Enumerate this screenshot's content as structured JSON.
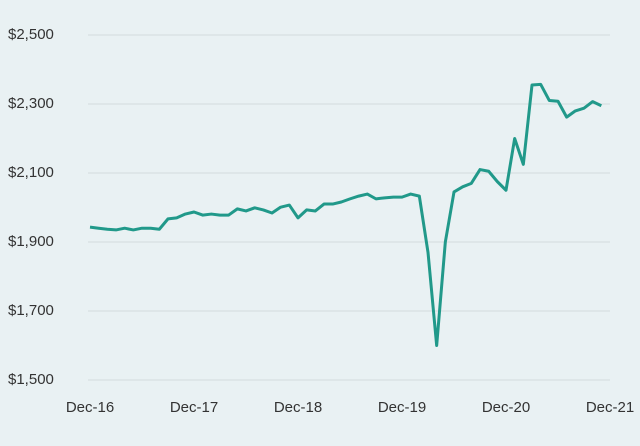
{
  "chart_data": {
    "type": "line",
    "x": [
      "2016-12",
      "2017-01",
      "2017-02",
      "2017-03",
      "2017-04",
      "2017-05",
      "2017-06",
      "2017-07",
      "2017-08",
      "2017-09",
      "2017-10",
      "2017-11",
      "2017-12",
      "2018-01",
      "2018-02",
      "2018-03",
      "2018-04",
      "2018-05",
      "2018-06",
      "2018-07",
      "2018-08",
      "2018-09",
      "2018-10",
      "2018-11",
      "2018-12",
      "2019-01",
      "2019-02",
      "2019-03",
      "2019-04",
      "2019-05",
      "2019-06",
      "2019-07",
      "2019-08",
      "2019-09",
      "2019-10",
      "2019-11",
      "2019-12",
      "2020-01",
      "2020-02",
      "2020-03",
      "2020-04",
      "2020-05",
      "2020-06",
      "2020-07",
      "2020-08",
      "2020-09",
      "2020-10",
      "2020-11",
      "2020-12",
      "2021-01",
      "2021-02",
      "2021-03",
      "2021-04",
      "2021-05",
      "2021-06",
      "2021-07",
      "2021-08",
      "2021-09",
      "2021-10",
      "2021-11"
    ],
    "series": [
      {
        "name": "Value",
        "color": "#21998a",
        "values": [
          1943,
          1940,
          1937,
          1935,
          1940,
          1935,
          1940,
          1940,
          1937,
          1967,
          1970,
          1981,
          1987,
          1978,
          1981,
          1978,
          1978,
          1996,
          1990,
          1999,
          1993,
          1984,
          2001,
          2007,
          1970,
          1993,
          1990,
          2010,
          2010,
          2016,
          2025,
          2033,
          2039,
          2025,
          2028,
          2030,
          2030,
          2039,
          2033,
          1870,
          1600,
          1900,
          2045,
          2060,
          2070,
          2110,
          2105,
          2075,
          2050,
          2200,
          2125,
          2355,
          2357,
          2310,
          2308,
          2262,
          2280,
          2288,
          2307,
          2295
        ]
      }
    ],
    "xlim": [
      "2016-12",
      "2021-12"
    ],
    "xticks": [
      {
        "value": "2016-12",
        "label": "Dec-16"
      },
      {
        "value": "2017-12",
        "label": "Dec-17"
      },
      {
        "value": "2018-12",
        "label": "Dec-18"
      },
      {
        "value": "2019-12",
        "label": "Dec-19"
      },
      {
        "value": "2020-12",
        "label": "Dec-20"
      },
      {
        "value": "2021-12",
        "label": "Dec-21"
      }
    ],
    "ylim": [
      1500,
      2500
    ],
    "yticks": [
      {
        "value": 1500,
        "label": "$1,500"
      },
      {
        "value": 1700,
        "label": "$1,700"
      },
      {
        "value": 1900,
        "label": "$1,900"
      },
      {
        "value": 2100,
        "label": "$2,100"
      },
      {
        "value": 2300,
        "label": "$2,300"
      },
      {
        "value": 2500,
        "label": "$2,500"
      }
    ],
    "grid": true
  }
}
